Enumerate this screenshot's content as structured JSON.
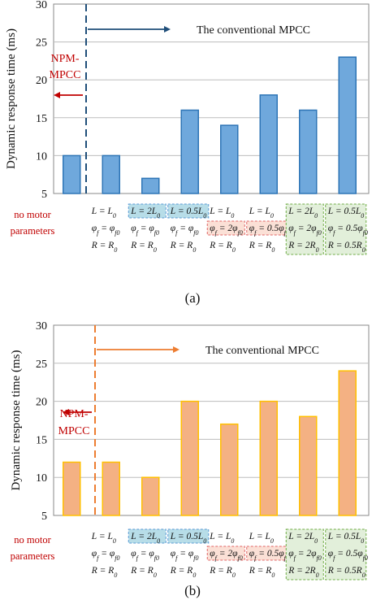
{
  "chart_data": [
    {
      "type": "bar",
      "subfigure_label": "(a)",
      "ylabel": "Dynamic response time (ms)",
      "ylim": [
        5,
        30
      ],
      "yticks": [
        "5",
        "10",
        "15",
        "20",
        "25",
        "30"
      ],
      "values": [
        10,
        10,
        7,
        16,
        14,
        18,
        16,
        23
      ],
      "categories": [
        [
          "no motor",
          "parameters"
        ],
        [
          "L = L0",
          "φf = φf0",
          "R = R0"
        ],
        [
          "L = 2L0",
          "φf = φf0",
          "R = R0"
        ],
        [
          "L = 0.5L0",
          "φf = φf0",
          "R = R0"
        ],
        [
          "L = L0",
          "φf = 2φf0",
          "R = R0"
        ],
        [
          "L = L0",
          "φf = 0.5φf0",
          "R = R0"
        ],
        [
          "L = 2L0",
          "φf = 2φf0",
          "R = 2R0"
        ],
        [
          "L = 0.5L0",
          "φf = 0.5φf0",
          "R = 0.5R0"
        ]
      ],
      "annotations": {
        "npm": [
          "NPM-",
          "MPCC"
        ],
        "conventional": "The conventional MPCC"
      },
      "grid": true,
      "colors": {
        "bar_fill": "#6fa8dc",
        "bar_stroke": "#2e75b6",
        "divider": "#1f4e79",
        "arrow_right": "#1f4e79",
        "arrow_left": "#c00000",
        "npm_text": "#c00000"
      }
    },
    {
      "type": "bar",
      "subfigure_label": "(b)",
      "ylabel": "Dynamic response time (ms)",
      "ylim": [
        5,
        30
      ],
      "yticks": [
        "5",
        "10",
        "15",
        "20",
        "25",
        "30"
      ],
      "values": [
        12,
        12,
        10,
        20,
        17,
        20,
        18,
        24
      ],
      "categories": [
        [
          "no motor",
          "parameters"
        ],
        [
          "L = L0",
          "φf = φf0",
          "R = R0"
        ],
        [
          "L = 2L0",
          "φf = φf0",
          "R = R0"
        ],
        [
          "L = 0.5L0",
          "φf = φf0",
          "R = R0"
        ],
        [
          "L = L0",
          "φf = 2φf0",
          "R = R0"
        ],
        [
          "L = L0",
          "φf = 0.5φf0",
          "R = R0"
        ],
        [
          "L = 2L0",
          "φf = 2φf0",
          "R = 2R0"
        ],
        [
          "L = 0.5L0",
          "φf = 0.5φf0",
          "R = 0.5R0"
        ]
      ],
      "annotations": {
        "npm": [
          "NPM-",
          "MPCC"
        ],
        "conventional": "The conventional MPCC"
      },
      "grid": true,
      "colors": {
        "bar_fill": "#f4b183",
        "bar_stroke": "#ffc000",
        "divider": "#ed7d31",
        "arrow_right": "#ed7d31",
        "arrow_left": "#c00000",
        "npm_text": "#c00000"
      }
    }
  ],
  "highlight_colors": {
    "blue": "#b7dde8",
    "red": "#fbe0d6",
    "green": "#e2efda",
    "blue_border": "#5b9bd5",
    "red_border": "#e06666",
    "green_border": "#70ad47"
  }
}
